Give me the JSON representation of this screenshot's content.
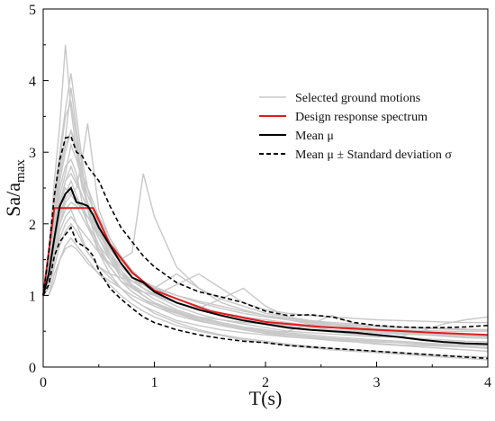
{
  "chart_data": {
    "type": "line",
    "title": "",
    "xlabel": "T(s)",
    "ylabel_main": "Sa/a",
    "ylabel_sub": "max",
    "xlim": [
      0,
      4
    ],
    "ylim": [
      0,
      5
    ],
    "x_ticks": [
      "0",
      "1",
      "2",
      "3",
      "4"
    ],
    "y_ticks": [
      "0",
      "1",
      "2",
      "3",
      "4",
      "5"
    ],
    "grid": false,
    "legend_position": "top-right",
    "legend": [
      {
        "key": "selected",
        "label": "Selected ground motions",
        "color": "#c8c8c8",
        "dash": "solid"
      },
      {
        "key": "design",
        "label": "Design response spectrum",
        "color": "#e31a1c",
        "dash": "solid"
      },
      {
        "key": "mean",
        "label": "Mean μ",
        "color": "#000000",
        "dash": "solid"
      },
      {
        "key": "std",
        "label": "Mean μ ± Standard deviation σ",
        "color": "#000000",
        "dash": "dashed"
      }
    ],
    "design_spectrum": {
      "x": [
        0,
        0.1,
        0.45,
        0.6,
        0.8,
        1.0,
        1.5,
        2.0,
        2.5,
        3.0,
        3.5,
        4.0
      ],
      "y": [
        1.0,
        2.22,
        2.22,
        1.72,
        1.32,
        1.07,
        0.78,
        0.63,
        0.56,
        0.52,
        0.48,
        0.45
      ]
    },
    "mean": {
      "x": [
        0,
        0.05,
        0.1,
        0.15,
        0.2,
        0.25,
        0.3,
        0.35,
        0.4,
        0.45,
        0.5,
        0.6,
        0.7,
        0.8,
        0.9,
        1.0,
        1.2,
        1.4,
        1.6,
        1.8,
        2.0,
        2.2,
        2.4,
        2.6,
        2.8,
        3.0,
        3.2,
        3.4,
        3.6,
        3.8,
        4.0
      ],
      "y": [
        1.0,
        1.3,
        1.8,
        2.25,
        2.42,
        2.5,
        2.3,
        2.28,
        2.25,
        2.12,
        1.95,
        1.7,
        1.45,
        1.25,
        1.18,
        1.05,
        0.9,
        0.8,
        0.72,
        0.65,
        0.6,
        0.55,
        0.52,
        0.5,
        0.48,
        0.45,
        0.42,
        0.38,
        0.35,
        0.33,
        0.32
      ]
    },
    "mean_plus_sigma": {
      "x": [
        0,
        0.05,
        0.1,
        0.15,
        0.2,
        0.25,
        0.3,
        0.35,
        0.4,
        0.45,
        0.5,
        0.6,
        0.7,
        0.8,
        0.9,
        1.0,
        1.2,
        1.4,
        1.6,
        1.8,
        2.0,
        2.2,
        2.4,
        2.6,
        2.8,
        3.0,
        3.2,
        3.4,
        3.6,
        3.8,
        4.0
      ],
      "y": [
        1.0,
        1.6,
        2.4,
        2.9,
        3.2,
        3.22,
        3.0,
        2.95,
        2.8,
        2.7,
        2.6,
        2.25,
        1.95,
        1.75,
        1.55,
        1.4,
        1.18,
        1.05,
        0.98,
        0.9,
        0.78,
        0.72,
        0.73,
        0.7,
        0.62,
        0.58,
        0.56,
        0.55,
        0.55,
        0.56,
        0.58
      ]
    },
    "mean_minus_sigma": {
      "x": [
        0,
        0.05,
        0.1,
        0.15,
        0.2,
        0.25,
        0.3,
        0.35,
        0.4,
        0.45,
        0.5,
        0.6,
        0.7,
        0.8,
        0.9,
        1.0,
        1.2,
        1.4,
        1.6,
        1.8,
        2.0,
        2.2,
        2.4,
        2.6,
        2.8,
        3.0,
        3.2,
        3.4,
        3.6,
        3.8,
        4.0
      ],
      "y": [
        1.0,
        1.15,
        1.55,
        1.75,
        1.85,
        1.95,
        1.75,
        1.7,
        1.65,
        1.55,
        1.35,
        1.1,
        0.95,
        0.82,
        0.7,
        0.62,
        0.52,
        0.45,
        0.4,
        0.36,
        0.34,
        0.3,
        0.28,
        0.26,
        0.24,
        0.22,
        0.2,
        0.18,
        0.16,
        0.14,
        0.12
      ]
    },
    "selected_ground_motions": [
      {
        "y": [
          1.0,
          1.6,
          2.6,
          3.4,
          4.5,
          3.6,
          3.0,
          2.5,
          2.3,
          2.0,
          1.8,
          1.5,
          1.25,
          1.1,
          1.0,
          0.9,
          0.75,
          0.65,
          0.58,
          0.52,
          0.48,
          0.45,
          0.42,
          0.4,
          0.38,
          0.36,
          0.34,
          0.32,
          0.3,
          0.28,
          0.27
        ]
      },
      {
        "y": [
          1.0,
          1.5,
          2.2,
          2.8,
          3.2,
          3.9,
          3.3,
          2.8,
          2.2,
          1.9,
          1.6,
          1.3,
          1.1,
          0.95,
          0.85,
          0.78,
          0.65,
          0.58,
          0.52,
          0.48,
          0.45,
          0.42,
          0.4,
          0.38,
          0.37,
          0.35,
          0.34,
          0.33,
          0.32,
          0.31,
          0.3
        ]
      },
      {
        "y": [
          1.0,
          1.2,
          1.6,
          2.0,
          2.3,
          2.4,
          2.5,
          2.9,
          3.4,
          2.8,
          2.2,
          1.8,
          1.5,
          1.3,
          1.2,
          1.1,
          0.95,
          0.85,
          0.75,
          0.68,
          0.62,
          0.58,
          0.55,
          0.52,
          0.5,
          0.48,
          0.46,
          0.45,
          0.44,
          0.43,
          0.42
        ]
      },
      {
        "y": [
          1.0,
          1.3,
          1.8,
          2.2,
          2.6,
          2.8,
          2.6,
          2.4,
          2.2,
          2.0,
          1.9,
          1.7,
          1.5,
          1.6,
          2.7,
          2.1,
          1.4,
          1.1,
          0.95,
          0.85,
          0.75,
          0.7,
          0.65,
          0.62,
          0.6,
          0.58,
          0.56,
          0.55,
          0.54,
          0.53,
          0.52
        ]
      },
      {
        "y": [
          1.0,
          1.4,
          2.0,
          2.5,
          2.8,
          2.9,
          2.7,
          2.3,
          2.0,
          1.8,
          1.6,
          1.4,
          1.2,
          1.1,
          1.05,
          1.0,
          1.15,
          1.3,
          1.1,
          0.9,
          0.8,
          0.75,
          0.72,
          0.7,
          0.68,
          0.66,
          0.65,
          0.64,
          0.63,
          0.62,
          0.62
        ]
      },
      {
        "y": [
          1.0,
          1.1,
          1.5,
          1.9,
          2.1,
          2.2,
          2.0,
          1.8,
          1.6,
          1.5,
          1.4,
          1.3,
          1.25,
          1.2,
          1.15,
          1.1,
          1.0,
          0.92,
          0.85,
          0.78,
          0.72,
          0.68,
          0.64,
          0.6,
          0.56,
          0.52,
          0.5,
          0.48,
          0.46,
          0.44,
          0.42
        ]
      },
      {
        "y": [
          1.0,
          1.3,
          1.9,
          2.4,
          2.7,
          3.1,
          2.9,
          2.6,
          2.3,
          2.1,
          1.9,
          1.6,
          1.35,
          1.15,
          1.0,
          0.9,
          0.78,
          0.68,
          0.6,
          0.54,
          0.5,
          0.46,
          0.43,
          0.4,
          0.38,
          0.36,
          0.34,
          0.32,
          0.3,
          0.28,
          0.26
        ]
      },
      {
        "y": [
          1.0,
          1.2,
          1.7,
          2.1,
          2.4,
          2.6,
          2.4,
          2.2,
          2.0,
          1.85,
          1.7,
          1.5,
          1.3,
          1.15,
          1.05,
          0.95,
          0.8,
          0.7,
          0.62,
          0.56,
          0.5,
          0.46,
          0.42,
          0.38,
          0.35,
          0.32,
          0.3,
          0.28,
          0.26,
          0.24,
          0.22
        ]
      },
      {
        "y": [
          1.0,
          1.1,
          1.4,
          1.7,
          1.9,
          2.0,
          1.9,
          1.75,
          1.6,
          1.5,
          1.4,
          1.25,
          1.1,
          0.95,
          0.85,
          0.75,
          0.62,
          0.52,
          0.45,
          0.4,
          0.36,
          0.32,
          0.29,
          0.26,
          0.24,
          0.22,
          0.2,
          0.18,
          0.16,
          0.15,
          0.14
        ]
      },
      {
        "y": [
          1.0,
          1.0,
          1.3,
          1.5,
          1.7,
          1.8,
          1.7,
          1.6,
          1.5,
          1.4,
          1.3,
          1.15,
          1.0,
          0.88,
          0.78,
          0.7,
          0.58,
          0.5,
          0.44,
          0.38,
          0.34,
          0.3,
          0.27,
          0.24,
          0.22,
          0.2,
          0.18,
          0.16,
          0.14,
          0.12,
          0.1
        ]
      },
      {
        "y": [
          1.0,
          1.5,
          2.3,
          2.9,
          3.5,
          3.7,
          3.2,
          2.6,
          2.2,
          1.9,
          1.7,
          1.4,
          1.2,
          1.05,
          0.95,
          0.88,
          0.76,
          0.7,
          0.66,
          0.62,
          0.6,
          0.58,
          0.56,
          0.55,
          0.54,
          0.53,
          0.52,
          0.51,
          0.5,
          0.5,
          0.5
        ]
      },
      {
        "y": [
          1.0,
          1.3,
          1.9,
          2.3,
          2.5,
          2.4,
          2.3,
          2.2,
          2.1,
          2.0,
          1.85,
          1.6,
          1.4,
          1.25,
          1.15,
          1.05,
          0.9,
          0.82,
          0.95,
          1.1,
          0.85,
          0.7,
          0.62,
          0.58,
          0.55,
          0.52,
          0.5,
          0.48,
          0.46,
          0.45,
          0.44
        ]
      },
      {
        "y": [
          1.0,
          1.2,
          1.6,
          2.0,
          2.2,
          2.3,
          2.25,
          2.1,
          1.95,
          1.8,
          1.65,
          1.4,
          1.2,
          1.05,
          0.95,
          0.85,
          0.72,
          0.64,
          0.58,
          0.52,
          0.48,
          0.5,
          0.6,
          0.72,
          0.6,
          0.52,
          0.48,
          0.46,
          0.45,
          0.44,
          0.43
        ]
      },
      {
        "y": [
          1.0,
          1.4,
          2.1,
          2.6,
          3.0,
          3.3,
          3.1,
          2.7,
          2.4,
          2.2,
          2.0,
          1.7,
          1.45,
          1.25,
          1.1,
          1.0,
          0.85,
          0.74,
          0.66,
          0.6,
          0.55,
          0.5,
          0.48,
          0.46,
          0.44,
          0.42,
          0.42,
          0.5,
          0.6,
          0.66,
          0.7
        ]
      },
      {
        "y": [
          1.0,
          1.1,
          1.5,
          1.8,
          2.0,
          2.1,
          2.0,
          1.9,
          1.8,
          1.7,
          1.6,
          1.45,
          1.3,
          1.2,
          1.1,
          1.0,
          0.9,
          0.82,
          0.76,
          0.7,
          0.66,
          0.62,
          0.58,
          0.55,
          0.52,
          0.5,
          0.48,
          0.47,
          0.46,
          0.45,
          0.45
        ]
      },
      {
        "y": [
          1.0,
          1.6,
          2.4,
          3.0,
          3.6,
          4.1,
          3.5,
          2.9,
          2.5,
          2.2,
          1.9,
          1.55,
          1.3,
          1.12,
          1.0,
          0.9,
          0.76,
          0.66,
          0.58,
          0.52,
          0.47,
          0.43,
          0.4,
          0.37,
          0.35,
          0.33,
          0.31,
          0.3,
          0.29,
          0.28,
          0.27
        ]
      },
      {
        "y": [
          1.0,
          1.2,
          1.7,
          2.1,
          2.35,
          2.45,
          2.35,
          2.25,
          2.1,
          1.95,
          1.8,
          1.55,
          1.35,
          1.2,
          1.1,
          1.02,
          0.9,
          0.8,
          0.72,
          0.66,
          0.6,
          0.56,
          0.52,
          0.49,
          0.46,
          0.44,
          0.42,
          0.4,
          0.38,
          0.36,
          0.35
        ]
      },
      {
        "y": [
          1.0,
          1.3,
          1.8,
          2.3,
          2.6,
          2.7,
          2.55,
          2.4,
          2.2,
          2.05,
          1.9,
          1.65,
          1.45,
          1.3,
          1.2,
          1.12,
          1.0,
          0.9,
          0.82,
          0.75,
          0.7,
          0.66,
          0.62,
          0.6,
          0.58,
          0.56,
          0.55,
          0.54,
          0.53,
          0.52,
          0.52
        ]
      },
      {
        "y": [
          1.0,
          1.0,
          1.2,
          1.5,
          1.65,
          1.7,
          1.65,
          1.55,
          1.45,
          1.38,
          1.3,
          1.2,
          1.1,
          1.0,
          0.92,
          0.85,
          0.75,
          0.68,
          0.62,
          0.56,
          0.52,
          0.48,
          0.45,
          0.42,
          0.4,
          0.38,
          0.36,
          0.34,
          0.32,
          0.3,
          0.3
        ]
      },
      {
        "y": [
          1.0,
          1.5,
          2.2,
          2.7,
          3.1,
          3.3,
          3.0,
          2.7,
          2.5,
          2.3,
          2.1,
          1.8,
          1.55,
          1.35,
          1.2,
          1.1,
          1.3,
          1.1,
          0.9,
          0.8,
          0.72,
          0.66,
          0.6,
          0.56,
          0.52,
          0.5,
          0.47,
          0.45,
          0.43,
          0.41,
          0.4
        ]
      }
    ]
  }
}
